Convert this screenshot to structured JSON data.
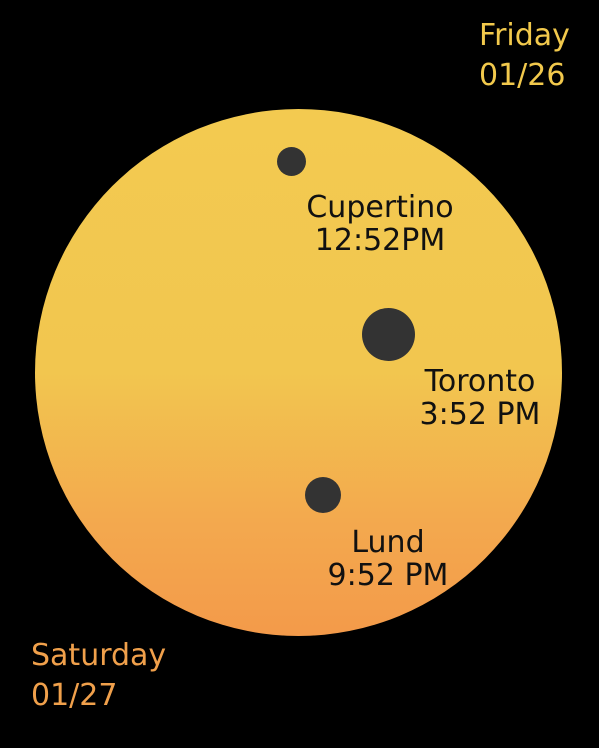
{
  "top_day": {
    "weekday": "Friday",
    "date": "01/26"
  },
  "bottom_day": {
    "weekday": "Saturday",
    "date": "01/27"
  },
  "cities": [
    {
      "name": "Cupertino",
      "time": "12:52PM"
    },
    {
      "name": "Toronto",
      "time": "3:52 PM"
    },
    {
      "name": "Lund",
      "time": "9:52 PM"
    }
  ],
  "colors": {
    "background": "#000000",
    "disc_top": "#f3ca50",
    "disc_bottom": "#f39a4a",
    "dot": "#333333",
    "top_day_text": "#f2c94c",
    "bottom_day_text": "#f0a04b"
  }
}
